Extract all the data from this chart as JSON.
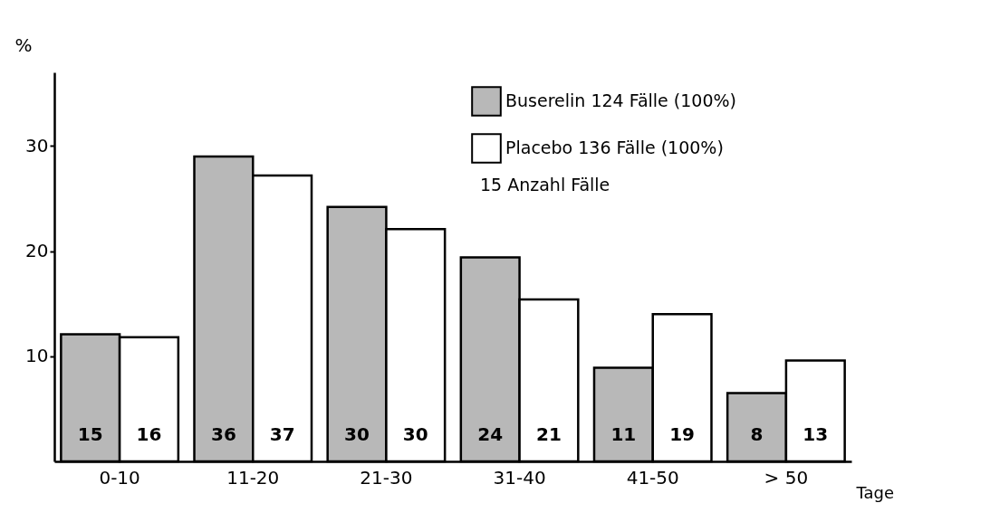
{
  "chart_data": {
    "type": "bar",
    "categories": [
      "0-10",
      "11-20",
      "21-30",
      "31-40",
      "41-50",
      "> 50"
    ],
    "series": [
      {
        "name": "Buserelin 124 Fälle (100%)",
        "color": "#b8b8b8",
        "values": [
          12.1,
          29.0,
          24.2,
          19.4,
          8.9,
          6.5
        ]
      },
      {
        "name": "Placebo 136 Fälle (100%)",
        "color": "#ffffff",
        "values": [
          11.8,
          27.2,
          22.1,
          15.4,
          14.0,
          9.6
        ]
      }
    ],
    "ylabel": "%",
    "xlabel": "Tage",
    "ylim": [
      0,
      37
    ],
    "yticks": [
      10,
      20,
      30
    ],
    "grid": false,
    "legend": "top right",
    "annotations": [
      "15 Anzahl Fälle",
      {
        "text": "15",
        "x": "0-10",
        "y": 2.5
      },
      {
        "text": "16",
        "x": "0-10",
        "y": 2.5
      },
      {
        "text": "36",
        "x": "11-20",
        "y": 2.5
      },
      {
        "text": "37",
        "x": "11-20",
        "y": 2.5
      },
      {
        "text": "30",
        "x": "21-30",
        "y": 2.5
      },
      {
        "text": "30",
        "x": "21-30",
        "y": 2.5
      },
      {
        "text": "24",
        "x": "31-40",
        "y": 2.5
      },
      {
        "text": "21",
        "x": "31-40",
        "y": 2.5
      },
      {
        "text": "11",
        "x": "41-50",
        "y": 2.5
      },
      {
        "text": "19",
        "x": "41-50",
        "y": 2.5
      },
      {
        "text": "8",
        "x": "> 50",
        "y": 2.5
      },
      {
        "text": "13",
        "x": "> 50",
        "y": 2.5
      }
    ]
  }
}
